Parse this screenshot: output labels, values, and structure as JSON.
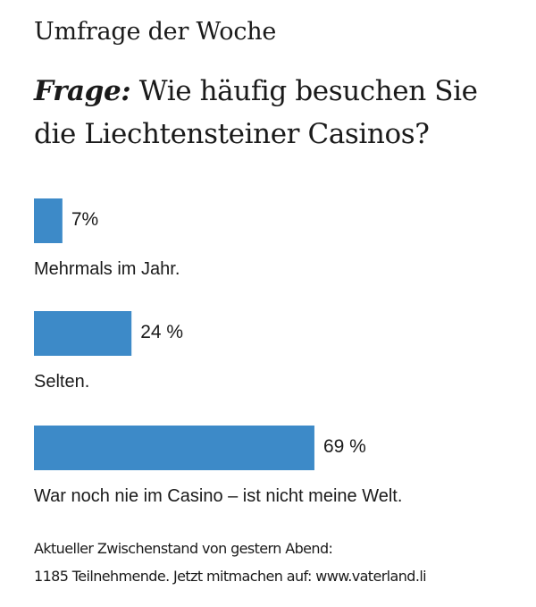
{
  "header": {
    "kicker": "Umfrage der Woche",
    "question_label": "Frage:",
    "question_text": " Wie häufig besuchen Sie die Liechtensteiner Casinos?"
  },
  "chart_data": {
    "type": "bar",
    "orientation": "horizontal",
    "categories": [
      "Mehrmals im Jahr.",
      "Selten.",
      "War noch nie im Casino – ist nicht meine Welt."
    ],
    "values": [
      7,
      24,
      69
    ],
    "value_labels": [
      "7%",
      "24 %",
      "69 %"
    ],
    "unit": "%",
    "xlim": [
      0,
      100
    ],
    "grid": false,
    "bar_color": "#3d8ac8"
  },
  "footer": {
    "line1": "Aktueller Zwischenstand von gestern Abend:",
    "line2": "1185 Teilnehmende. Jetzt mitmachen auf: www.vaterland.li"
  }
}
